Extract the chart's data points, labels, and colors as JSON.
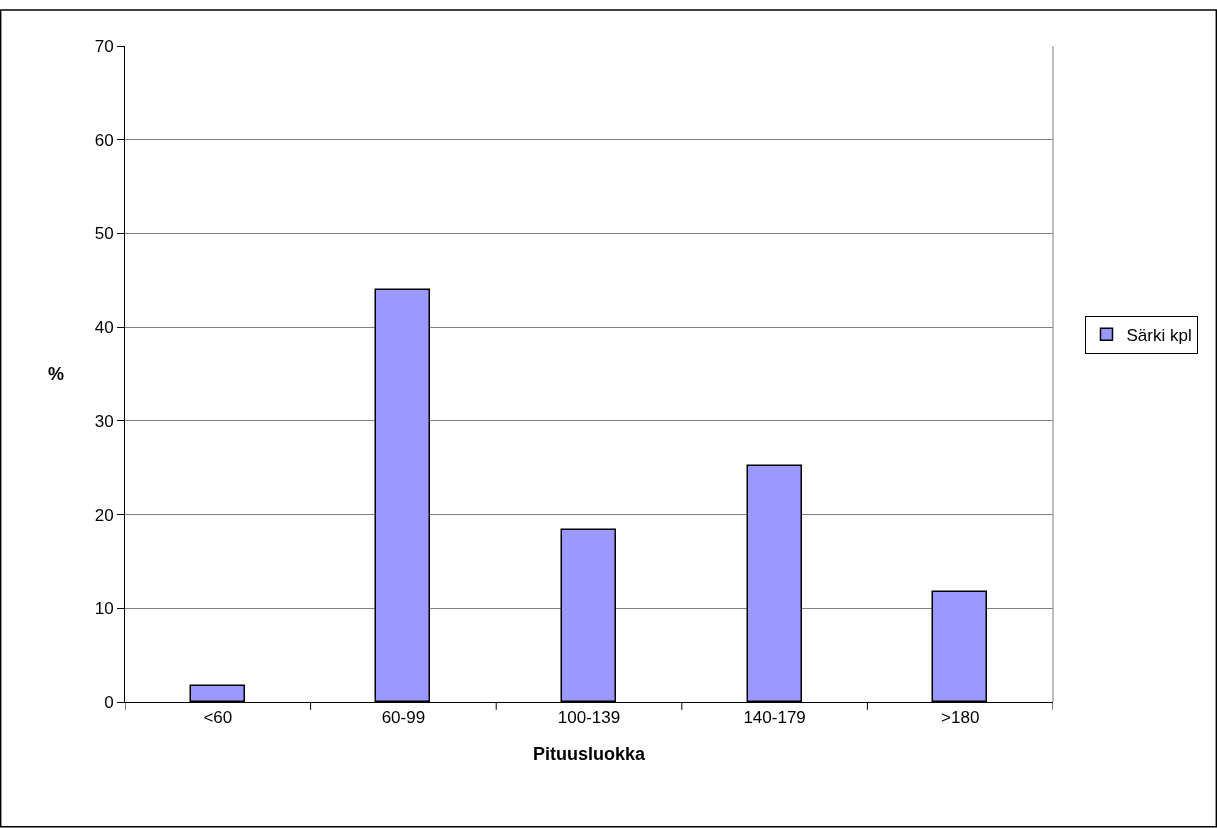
{
  "chart_data": {
    "type": "bar",
    "xlabel": "Pituusluokka",
    "ylabel": "%",
    "categories": [
      "<60",
      "60-99",
      "100-139",
      "140-179",
      ">180"
    ],
    "series": [
      {
        "name": "Särki kpl",
        "color": "#9999ff",
        "values": [
          1.75,
          44.0,
          18.4,
          25.2,
          11.7
        ]
      }
    ],
    "ylim": [
      0,
      70
    ],
    "yticks": [
      0,
      10,
      20,
      30,
      40,
      50,
      60,
      70
    ],
    "grid": "y",
    "legend": "right"
  }
}
